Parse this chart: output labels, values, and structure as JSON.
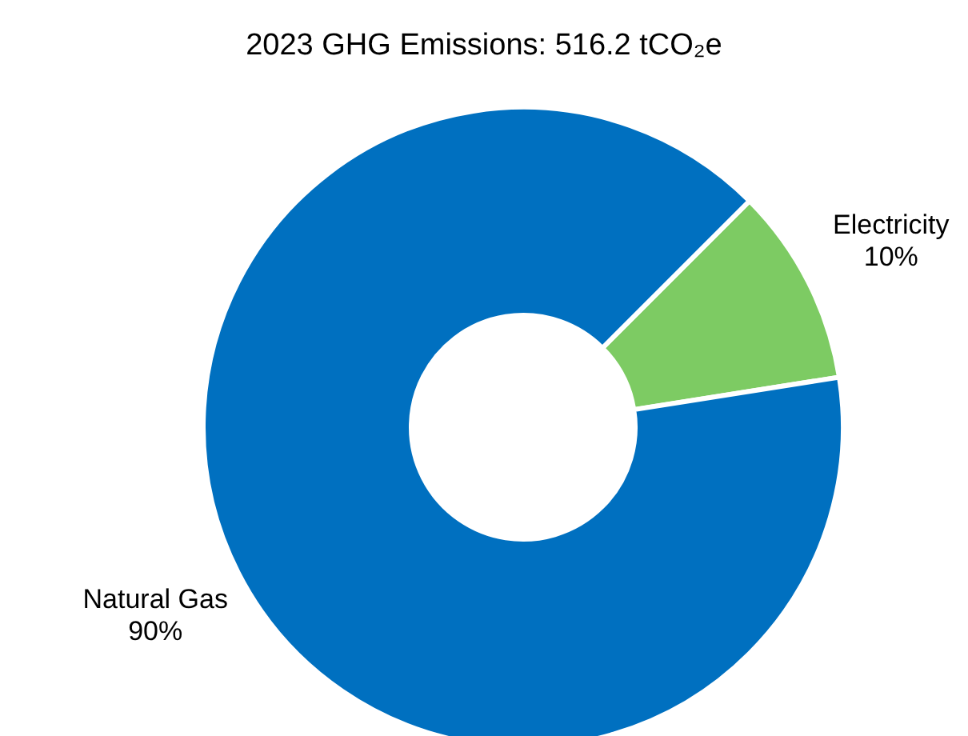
{
  "chart_data": {
    "type": "donut",
    "title": "2023 GHG Emissions: 516.2 tCO₂e",
    "categories": [
      "Electricity",
      "Natural Gas"
    ],
    "values": [
      10,
      90
    ],
    "colors": [
      "#7dcb63",
      "#0070c0"
    ],
    "value_labels": [
      "10%",
      "90%"
    ]
  }
}
